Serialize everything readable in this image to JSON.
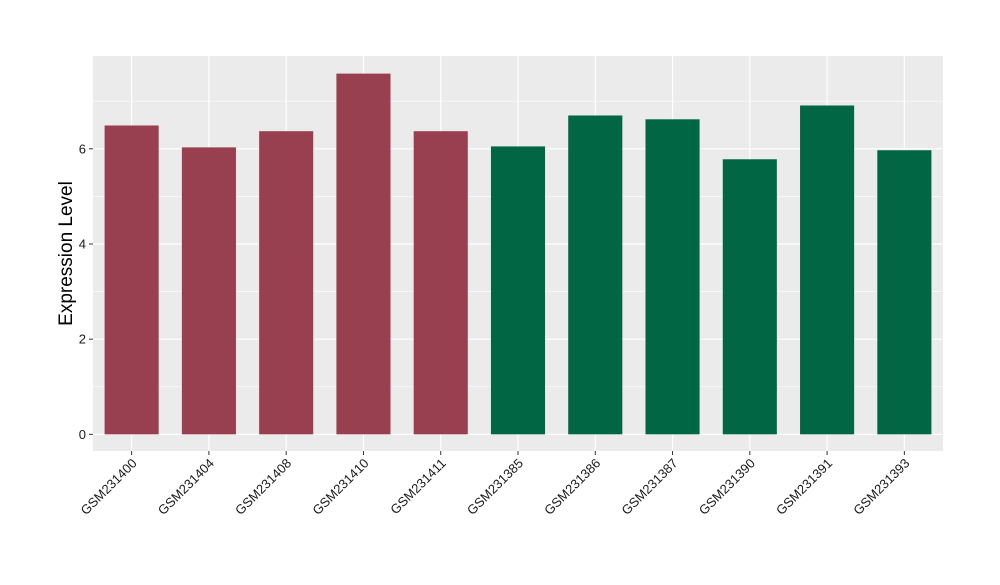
{
  "colors": {
    "panel_bg": "#EBEBEB",
    "grid_major": "#FFFFFF",
    "axis_text": "#1A1A1A",
    "group_a": "#98404F",
    "group_b": "#006644"
  },
  "chart_data": {
    "type": "bar",
    "ylabel": "Expression Level",
    "ylim": [
      -0.35,
      7.95
    ],
    "y_ticks": [
      0,
      2,
      4,
      6
    ],
    "grid": true,
    "categories": [
      "GSM231400",
      "GSM231404",
      "GSM231408",
      "GSM231410",
      "GSM231411",
      "GSM231385",
      "GSM231386",
      "GSM231387",
      "GSM231390",
      "GSM231391",
      "GSM231393"
    ],
    "values": [
      6.49,
      6.03,
      6.37,
      7.58,
      6.37,
      6.05,
      6.7,
      6.62,
      5.78,
      6.91,
      5.97
    ],
    "bar_colors": [
      "#98404F",
      "#98404F",
      "#98404F",
      "#98404F",
      "#98404F",
      "#006644",
      "#006644",
      "#006644",
      "#006644",
      "#006644",
      "#006644"
    ]
  }
}
